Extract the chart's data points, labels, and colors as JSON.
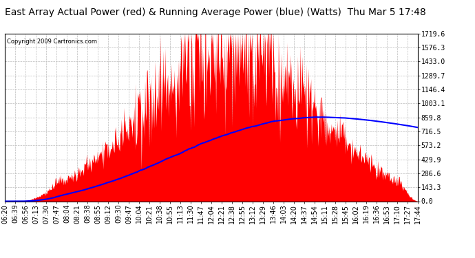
{
  "title": "East Array Actual Power (red) & Running Average Power (blue) (Watts)  Thu Mar 5 17:48",
  "copyright": "Copyright 2009 Cartronics.com",
  "ylabel_values": [
    0.0,
    143.3,
    286.6,
    429.9,
    573.2,
    716.5,
    859.8,
    1003.1,
    1146.4,
    1289.7,
    1433.0,
    1576.3,
    1719.6
  ],
  "ymax": 1719.6,
  "ymin": 0.0,
  "x_labels": [
    "06:20",
    "06:39",
    "06:56",
    "07:13",
    "07:30",
    "07:47",
    "08:04",
    "08:21",
    "08:38",
    "08:55",
    "09:12",
    "09:30",
    "09:47",
    "10:04",
    "10:21",
    "10:38",
    "10:55",
    "11:13",
    "11:30",
    "11:47",
    "12:04",
    "12:21",
    "12:38",
    "12:55",
    "13:12",
    "13:29",
    "13:46",
    "14:03",
    "14:20",
    "14:37",
    "14:54",
    "15:11",
    "15:28",
    "15:45",
    "16:02",
    "16:19",
    "16:36",
    "16:53",
    "17:10",
    "17:27",
    "17:44"
  ],
  "background_color": "#ffffff",
  "plot_bg_color": "#ffffff",
  "grid_color": "#bbbbbb",
  "bar_color": "#ff0000",
  "line_color": "#0000ff",
  "title_fontsize": 10,
  "tick_fontsize": 7,
  "copyright_fontsize": 6
}
